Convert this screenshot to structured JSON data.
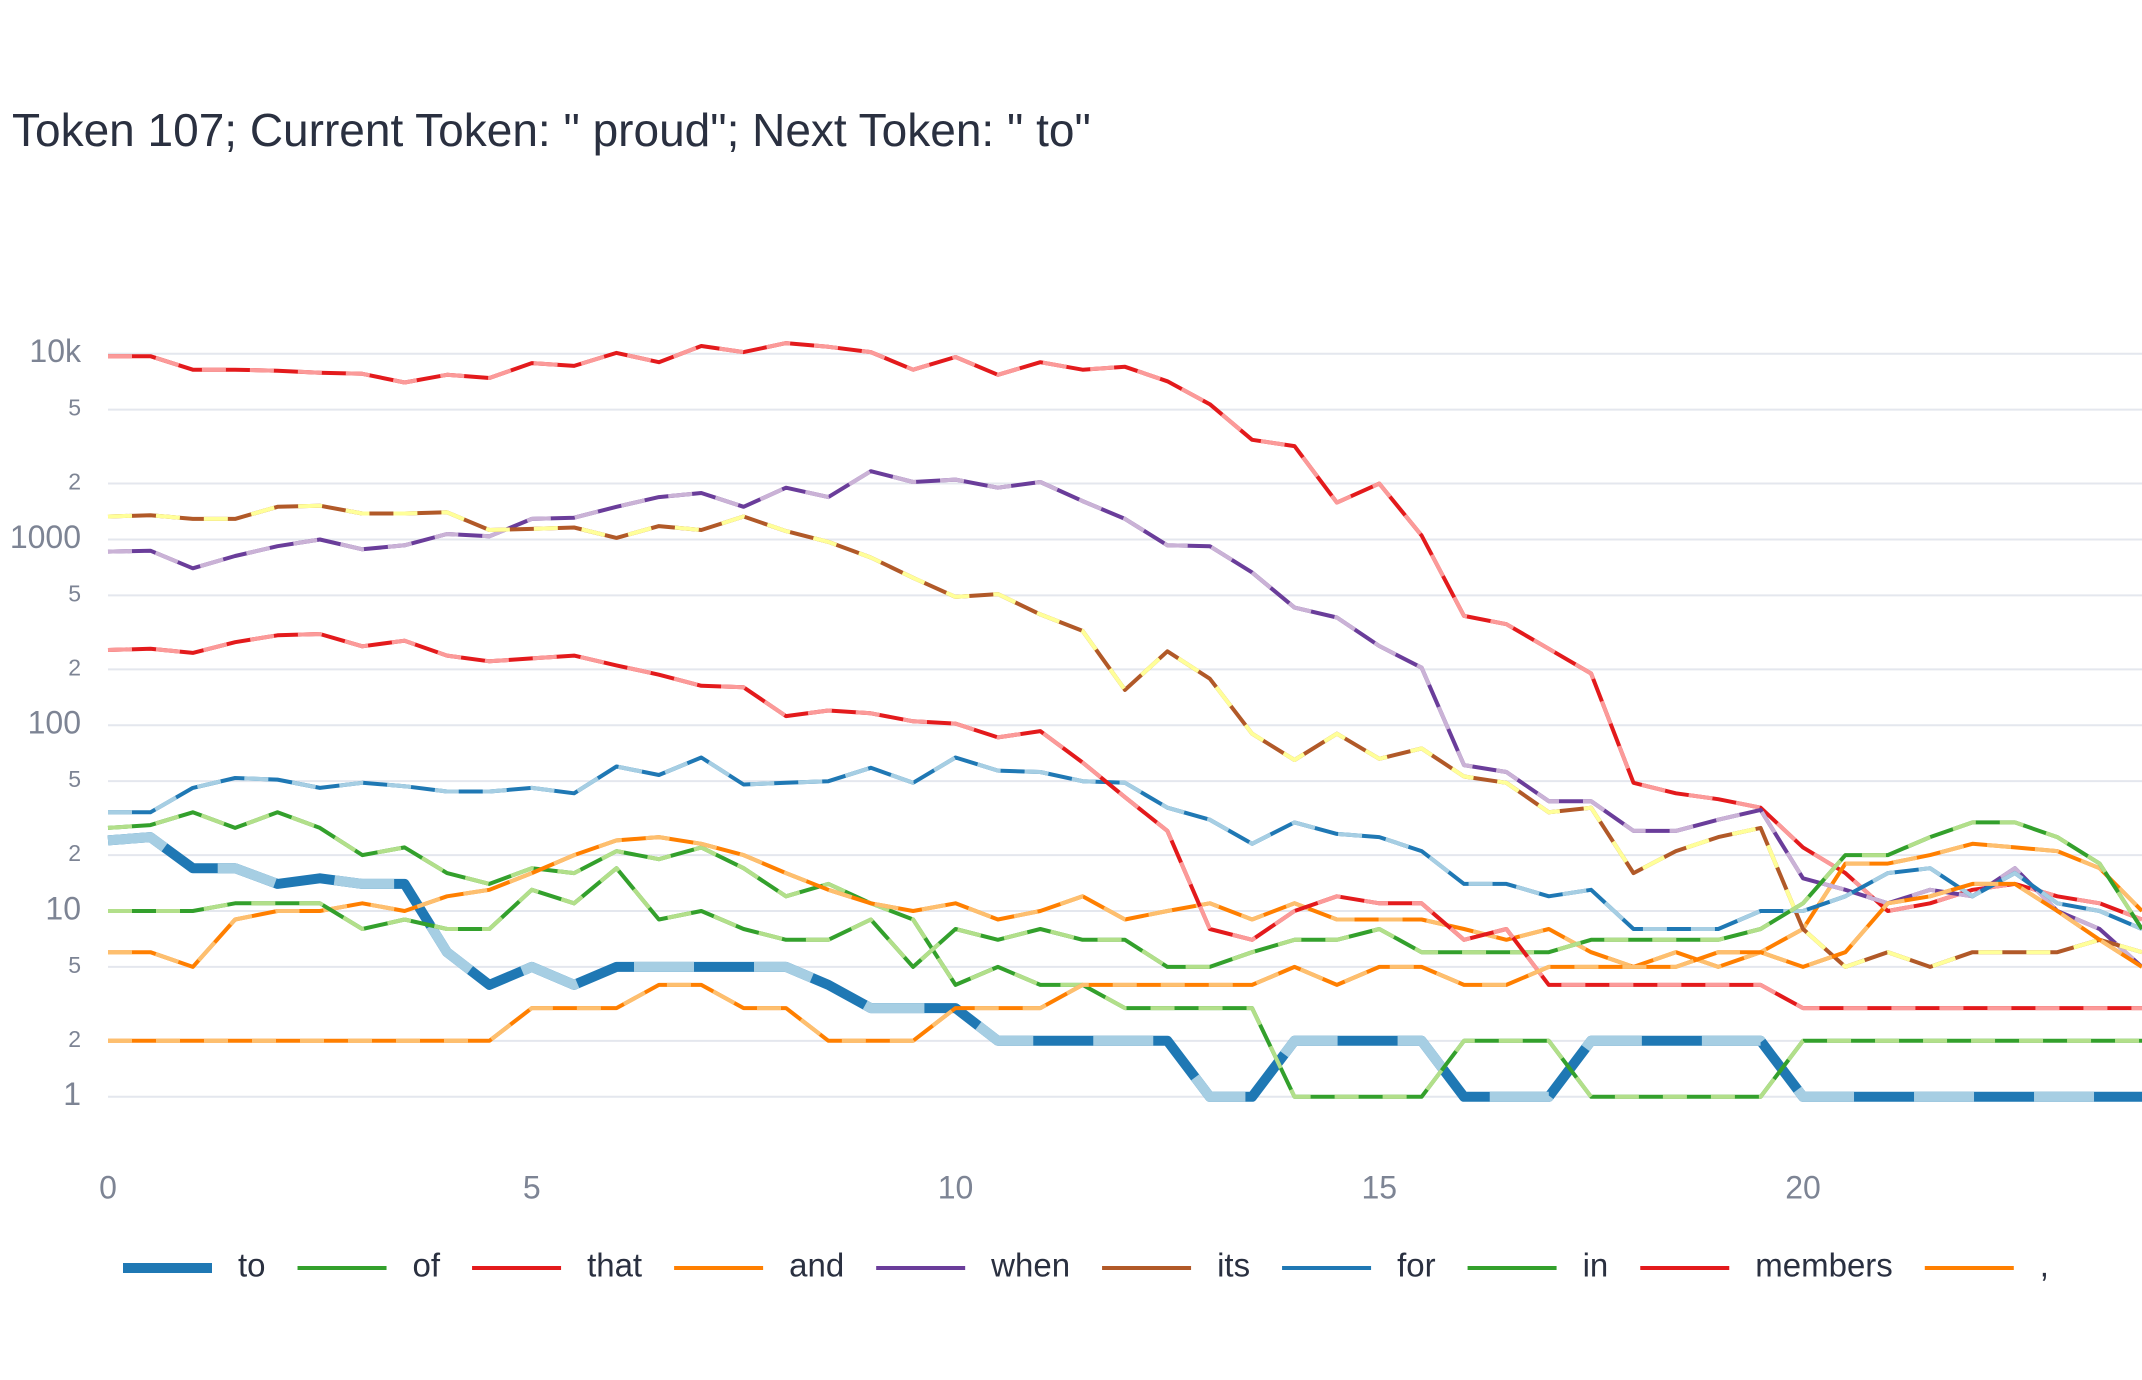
{
  "chart_data": {
    "type": "line",
    "title": "Token 107; Current Token: \" proud\"; Next Token: \" to\"",
    "log_y": true,
    "grid": true,
    "legend": "bottom",
    "x": [
      0,
      0.5,
      1,
      1.5,
      2,
      2.5,
      3,
      3.5,
      4,
      4.5,
      5,
      5.5,
      6,
      6.5,
      7,
      7.5,
      8,
      8.5,
      9,
      9.5,
      10,
      10.5,
      11,
      11.5,
      12,
      12.5,
      13,
      13.5,
      14,
      14.5,
      15,
      15.5,
      16,
      16.5,
      17,
      17.5,
      18,
      18.5,
      19,
      19.5,
      20,
      20.5,
      21,
      21.5,
      22,
      22.5,
      23,
      23.5,
      24
    ],
    "xlim": [
      0,
      24
    ],
    "xticks": [
      0,
      5,
      10,
      15,
      20
    ],
    "ylim": [
      0.55,
      15000
    ],
    "yticks": [
      1,
      2,
      5,
      10,
      {
        "value": 20,
        "label": "2"
      },
      {
        "value": 50,
        "label": "5"
      },
      100,
      {
        "value": 200,
        "label": "2"
      },
      {
        "value": 500,
        "label": "5"
      },
      1000,
      {
        "value": 2000,
        "label": "2"
      },
      {
        "value": 5000,
        "label": "5"
      },
      {
        "value": 10000,
        "label": "10k"
      }
    ],
    "series": [
      {
        "name": "to",
        "color": "#1f78b4",
        "alt_color": "#a6cee3",
        "width": 10,
        "values": [
          24,
          25,
          17,
          17,
          14,
          15,
          14,
          14,
          6,
          4,
          5,
          4,
          5,
          5,
          5,
          5,
          5,
          4,
          3,
          3,
          3,
          2,
          2,
          2,
          2,
          2,
          1,
          1,
          2,
          2,
          2,
          2,
          1,
          1,
          1,
          2,
          2,
          2,
          2,
          2,
          1,
          1,
          1,
          1,
          1,
          1,
          1,
          1,
          1
        ]
      },
      {
        "name": "of",
        "color": "#33a02c",
        "alt_color": "#b2df8a",
        "width": 4,
        "values": [
          28,
          29,
          34,
          28,
          34,
          28,
          20,
          22,
          16,
          14,
          17,
          16,
          21,
          19,
          22,
          17,
          12,
          14,
          11,
          9,
          4,
          5,
          4,
          4,
          3,
          3,
          3,
          3,
          1,
          1,
          1,
          1,
          2,
          2,
          2,
          1,
          1,
          1,
          1,
          1,
          2,
          2,
          2,
          2,
          2,
          2,
          2,
          2,
          2
        ]
      },
      {
        "name": "that",
        "color": "#e31a1c",
        "alt_color": "#fb9a99",
        "width": 4,
        "values": [
          9700,
          9700,
          8200,
          8200,
          8100,
          7900,
          7800,
          7000,
          7700,
          7400,
          8900,
          8600,
          10100,
          9000,
          11000,
          10200,
          11400,
          10900,
          10200,
          8200,
          9600,
          7700,
          9000,
          8200,
          8500,
          7100,
          5350,
          3440,
          3180,
          1580,
          2000,
          1050,
          388,
          350,
          258,
          190,
          49,
          43,
          40,
          36,
          22,
          16,
          10,
          11,
          13,
          14,
          12,
          11,
          9
        ]
      },
      {
        "name": "and",
        "color": "#ff7f00",
        "alt_color": "#fdbf6f",
        "width": 4,
        "values": [
          6,
          6,
          5,
          9,
          10,
          10,
          11,
          10,
          12,
          13,
          16,
          20,
          24,
          25,
          23,
          20,
          16,
          13,
          11,
          10,
          11,
          9,
          10,
          12,
          9,
          10,
          11,
          9,
          11,
          9,
          9,
          9,
          8,
          7,
          8,
          6,
          5,
          6,
          5,
          6,
          8,
          18,
          18,
          20,
          23,
          22,
          21,
          17,
          10
        ]
      },
      {
        "name": "when",
        "color": "#6a3d9a",
        "alt_color": "#cab2d6",
        "width": 4,
        "values": [
          860,
          870,
          700,
          815,
          920,
          1000,
          885,
          930,
          1070,
          1040,
          1290,
          1310,
          1500,
          1690,
          1780,
          1500,
          1900,
          1690,
          2330,
          2040,
          2100,
          1900,
          2040,
          1610,
          1290,
          930,
          920,
          665,
          430,
          380,
          267,
          204,
          61,
          56,
          39,
          39,
          27,
          27,
          31,
          35,
          15,
          13,
          11,
          13,
          12,
          17,
          10,
          8,
          5
        ]
      },
      {
        "name": "its",
        "color": "#b15928",
        "alt_color": "#ffff99",
        "width": 4,
        "values": [
          1330,
          1350,
          1290,
          1290,
          1500,
          1520,
          1380,
          1380,
          1400,
          1125,
          1140,
          1160,
          1020,
          1180,
          1125,
          1330,
          1110,
          970,
          800,
          622,
          491,
          508,
          395,
          322,
          155,
          250,
          178,
          90,
          65,
          90,
          66,
          75,
          53,
          49,
          34,
          36,
          16,
          21,
          25,
          28,
          8,
          5,
          6,
          5,
          6,
          6,
          6,
          7,
          6
        ]
      },
      {
        "name": "for",
        "color": "#1f78b4",
        "alt_color": "#a6cee3",
        "width": 4,
        "values": [
          34,
          34,
          46,
          52,
          51,
          46,
          49,
          47,
          44,
          44,
          46,
          43,
          60,
          54,
          67,
          48,
          49,
          50,
          59,
          49,
          67,
          57,
          56,
          50,
          49,
          36,
          31,
          23,
          30,
          26,
          25,
          21,
          14,
          14,
          12,
          13,
          8,
          8,
          8,
          10,
          10,
          12,
          16,
          17,
          12,
          16,
          11,
          10,
          8
        ]
      },
      {
        "name": "in",
        "color": "#33a02c",
        "alt_color": "#b2df8a",
        "width": 4,
        "values": [
          10,
          10,
          10,
          11,
          11,
          11,
          8,
          9,
          8,
          8,
          13,
          11,
          17,
          9,
          10,
          8,
          7,
          7,
          9,
          5,
          8,
          7,
          8,
          7,
          7,
          5,
          5,
          6,
          7,
          7,
          8,
          6,
          6,
          6,
          6,
          7,
          7,
          7,
          7,
          8,
          11,
          20,
          20,
          25,
          30,
          30,
          25,
          18,
          8
        ]
      },
      {
        "name": "members",
        "color": "#e31a1c",
        "alt_color": "#fb9a99",
        "width": 4,
        "values": [
          254,
          258,
          245,
          280,
          305,
          310,
          266,
          285,
          237,
          221,
          229,
          237,
          210,
          187,
          163,
          160,
          112,
          120,
          116,
          105,
          102,
          86,
          93,
          63,
          41,
          27,
          8,
          7,
          10,
          12,
          11,
          11,
          7,
          8,
          4,
          4,
          4,
          4,
          4,
          4,
          3,
          3,
          3,
          3,
          3,
          3,
          3,
          3,
          3
        ]
      },
      {
        "name": ",",
        "color": "#ff7f00",
        "alt_color": "#fdbf6f",
        "width": 4,
        "values": [
          2,
          2,
          2,
          2,
          2,
          2,
          2,
          2,
          2,
          2,
          3,
          3,
          3,
          4,
          4,
          3,
          3,
          2,
          2,
          2,
          3,
          3,
          3,
          4,
          4,
          4,
          4,
          4,
          5,
          4,
          5,
          5,
          4,
          4,
          5,
          5,
          5,
          5,
          6,
          6,
          5,
          6,
          11,
          12,
          14,
          14,
          10,
          7,
          5
        ]
      }
    ]
  }
}
